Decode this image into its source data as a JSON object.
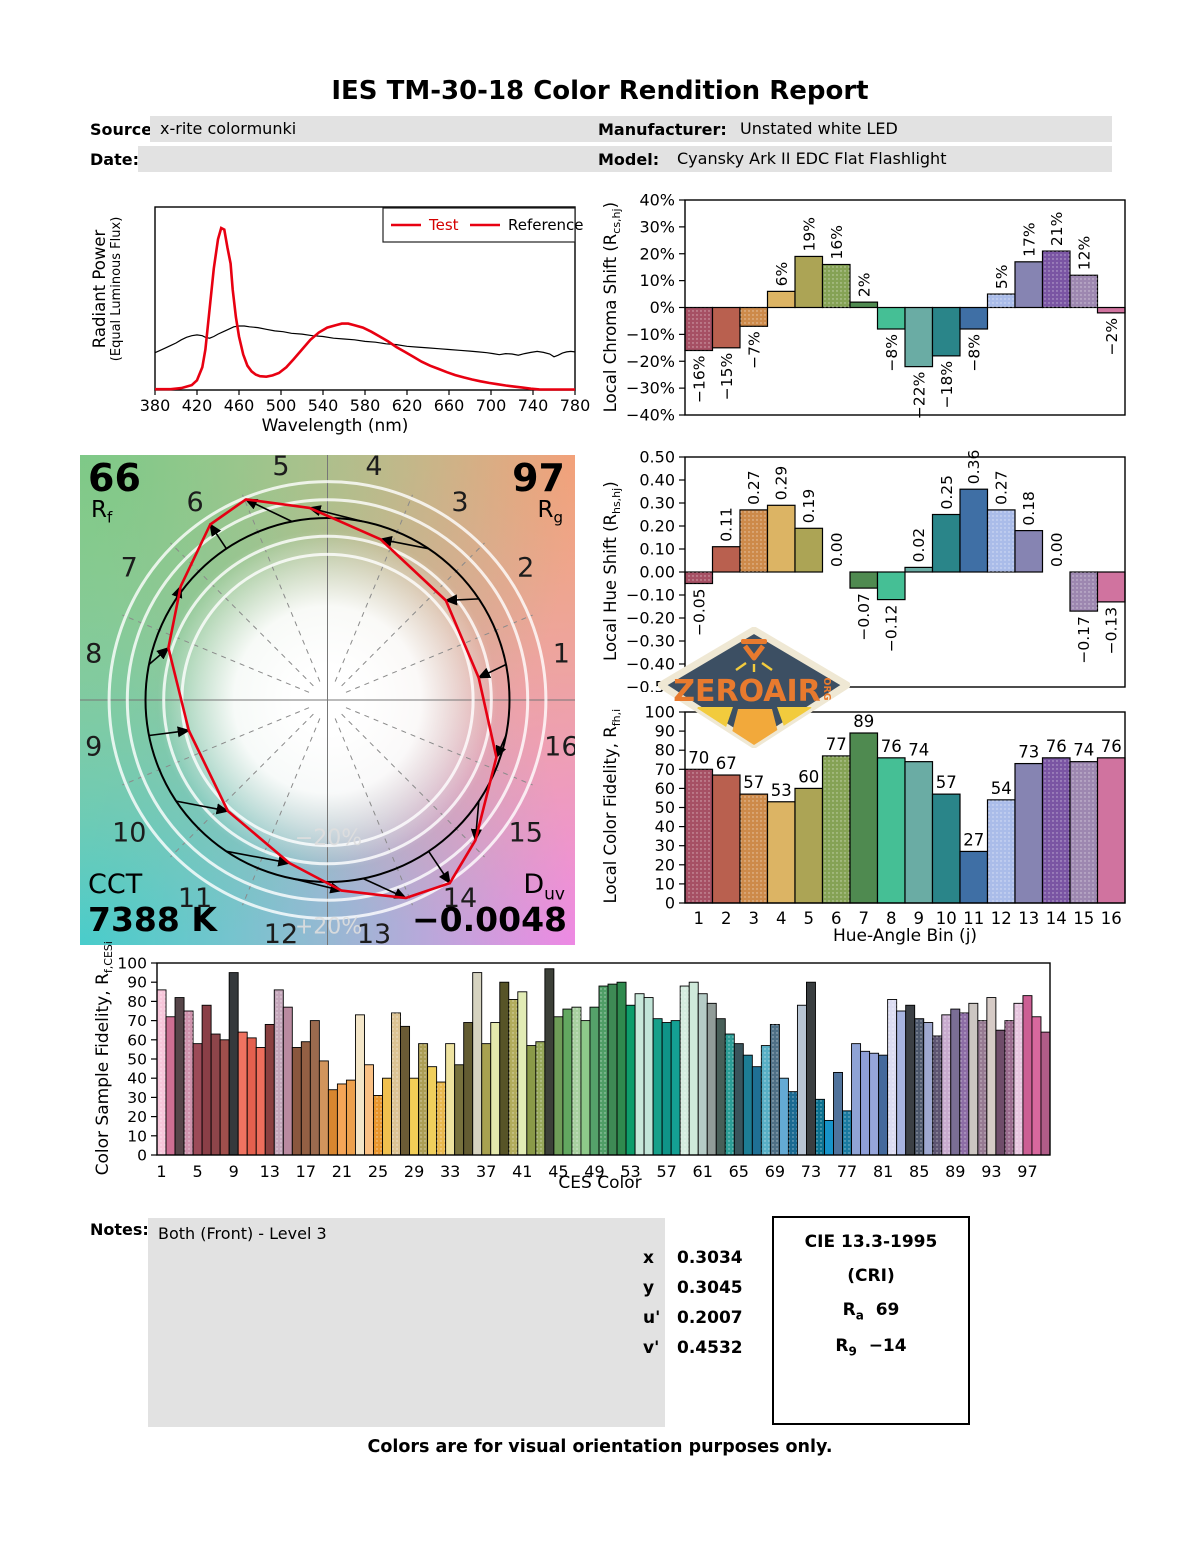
{
  "title": "IES TM-30-18 Color Rendition Report",
  "fields": {
    "source_label": "Source:",
    "source_value": "x-rite colormunki",
    "date_label": "Date:",
    "date_value": "",
    "manufacturer_label": "Manufacturer:",
    "manufacturer_value": "Unstated white LED",
    "model_label": "Model:",
    "model_value": "Cyansky Ark II EDC Flat Flashlight"
  },
  "labels": {
    "spd_ylabel_1": "Radiant Power",
    "spd_ylabel_2": "(Equal Luminous Flux)",
    "spd_xlabel": "Wavelength (nm)",
    "chroma_main": "Local Chroma Shift (R",
    "chroma_sub": "cs,hj",
    "chroma_close": ")",
    "hue_main": "Local Hue Shift (R",
    "hue_sub": "hs,hj",
    "hue_close": ")",
    "fid_main": "Local Color Fidelity, R",
    "fid_sub": "fh,i",
    "fid_close": "",
    "fid_xlabel": "Hue-Angle Bin (j)",
    "ces_main": "Color Sample Fidelity, R",
    "ces_sub": "f,CESi",
    "ces_close": "",
    "ces_xlabel": "CES Color"
  },
  "cvg": {
    "rf": "66",
    "rf_main": "R",
    "rf_sub": "f",
    "rg": "97",
    "rg_main": "R",
    "rg_sub": "g",
    "cct_label": "CCT",
    "cct_value": "7388 K",
    "duv_main": "D",
    "duv_sub": "uv",
    "duv_value": "−0.0048",
    "ring_plus": "+20%",
    "ring_minus": "−20%"
  },
  "logo": {
    "text": "ZEROAIR",
    "org": "ORG"
  },
  "notes": {
    "label": "Notes:",
    "text": "Both (Front) - Level 3"
  },
  "coords": [
    {
      "k": "x",
      "v": "0.3034"
    },
    {
      "k": "y",
      "v": "0.3045"
    },
    {
      "k": "u'",
      "v": "0.2007"
    },
    {
      "k": "v'",
      "v": "0.4532"
    }
  ],
  "cri": {
    "title": "CIE 13.3-1995",
    "subtitle": "(CRI)",
    "ra_main": "R",
    "ra_sub": "a",
    "ra_value": "69",
    "r9_main": "R",
    "r9_sub": "9",
    "r9_value": "−14"
  },
  "footer": "Colors are for visual orientation purposes only.",
  "bin_colors": [
    "#a65064",
    "#b9604f",
    "#cd8a4a",
    "#dcb464",
    "#aca455",
    "#85a255",
    "#4f8a50",
    "#45bf95",
    "#6aaca4",
    "#2a8589",
    "#3f6fa5",
    "#aabce9",
    "#8684b2",
    "#7a55a3",
    "#9d87b0",
    "#d0739f"
  ],
  "dotted_bins": [
    1,
    3,
    6,
    12,
    14,
    15
  ],
  "chart_data": {
    "spd": {
      "type": "line",
      "xlabel": "Wavelength (nm)",
      "ylabel": "Radiant Power (Equal Luminous Flux)",
      "xlim": [
        380,
        780
      ],
      "xtick_step": 40,
      "grid": false,
      "legend": [
        "Test",
        "Reference"
      ],
      "legend_colors": [
        "#d40000",
        "#000000"
      ],
      "test": [
        [
          380,
          0.005
        ],
        [
          395,
          0.005
        ],
        [
          405,
          0.012
        ],
        [
          415,
          0.03
        ],
        [
          420,
          0.06
        ],
        [
          425,
          0.14
        ],
        [
          428,
          0.25
        ],
        [
          432,
          0.5
        ],
        [
          436,
          0.75
        ],
        [
          440,
          0.93
        ],
        [
          443,
          1.0
        ],
        [
          446,
          0.99
        ],
        [
          449,
          0.88
        ],
        [
          452,
          0.78
        ],
        [
          454,
          0.62
        ],
        [
          457,
          0.45
        ],
        [
          460,
          0.33
        ],
        [
          464,
          0.22
        ],
        [
          468,
          0.15
        ],
        [
          472,
          0.115
        ],
        [
          476,
          0.095
        ],
        [
          480,
          0.085
        ],
        [
          486,
          0.082
        ],
        [
          492,
          0.09
        ],
        [
          498,
          0.105
        ],
        [
          505,
          0.14
        ],
        [
          512,
          0.19
        ],
        [
          520,
          0.25
        ],
        [
          528,
          0.31
        ],
        [
          536,
          0.355
        ],
        [
          544,
          0.385
        ],
        [
          552,
          0.4
        ],
        [
          558,
          0.41
        ],
        [
          564,
          0.41
        ],
        [
          570,
          0.4
        ],
        [
          578,
          0.385
        ],
        [
          586,
          0.36
        ],
        [
          594,
          0.33
        ],
        [
          602,
          0.3
        ],
        [
          610,
          0.265
        ],
        [
          618,
          0.235
        ],
        [
          626,
          0.205
        ],
        [
          634,
          0.175
        ],
        [
          642,
          0.15
        ],
        [
          650,
          0.13
        ],
        [
          658,
          0.11
        ],
        [
          666,
          0.092
        ],
        [
          674,
          0.078
        ],
        [
          682,
          0.065
        ],
        [
          690,
          0.054
        ],
        [
          698,
          0.044
        ],
        [
          706,
          0.036
        ],
        [
          714,
          0.028
        ],
        [
          722,
          0.021
        ],
        [
          730,
          0.015
        ],
        [
          738,
          0.008
        ],
        [
          746,
          0.004
        ],
        [
          760,
          0.003
        ],
        [
          780,
          0.003
        ]
      ],
      "reference": [
        [
          380,
          0.23
        ],
        [
          385,
          0.245
        ],
        [
          390,
          0.26
        ],
        [
          395,
          0.275
        ],
        [
          400,
          0.29
        ],
        [
          405,
          0.31
        ],
        [
          410,
          0.325
        ],
        [
          415,
          0.335
        ],
        [
          420,
          0.34
        ],
        [
          425,
          0.335
        ],
        [
          428,
          0.325
        ],
        [
          432,
          0.32
        ],
        [
          436,
          0.33
        ],
        [
          440,
          0.345
        ],
        [
          445,
          0.36
        ],
        [
          450,
          0.375
        ],
        [
          455,
          0.39
        ],
        [
          460,
          0.395
        ],
        [
          465,
          0.395
        ],
        [
          470,
          0.39
        ],
        [
          478,
          0.385
        ],
        [
          486,
          0.375
        ],
        [
          494,
          0.365
        ],
        [
          502,
          0.36
        ],
        [
          510,
          0.35
        ],
        [
          520,
          0.345
        ],
        [
          530,
          0.335
        ],
        [
          540,
          0.33
        ],
        [
          550,
          0.32
        ],
        [
          560,
          0.315
        ],
        [
          570,
          0.31
        ],
        [
          580,
          0.3
        ],
        [
          590,
          0.295
        ],
        [
          600,
          0.285
        ],
        [
          610,
          0.28
        ],
        [
          620,
          0.27
        ],
        [
          630,
          0.265
        ],
        [
          640,
          0.26
        ],
        [
          650,
          0.255
        ],
        [
          660,
          0.25
        ],
        [
          670,
          0.245
        ],
        [
          680,
          0.24
        ],
        [
          688,
          0.235
        ],
        [
          696,
          0.23
        ],
        [
          702,
          0.225
        ],
        [
          708,
          0.218
        ],
        [
          714,
          0.225
        ],
        [
          720,
          0.222
        ],
        [
          726,
          0.215
        ],
        [
          732,
          0.225
        ],
        [
          738,
          0.232
        ],
        [
          744,
          0.238
        ],
        [
          750,
          0.232
        ],
        [
          756,
          0.222
        ],
        [
          760,
          0.205
        ],
        [
          764,
          0.215
        ],
        [
          768,
          0.228
        ],
        [
          772,
          0.235
        ],
        [
          776,
          0.238
        ],
        [
          780,
          0.235
        ]
      ]
    },
    "local_chroma_shift": {
      "type": "bar",
      "ylabel": "Local Chroma Shift (Rcs,hj)",
      "categories": [
        1,
        2,
        3,
        4,
        5,
        6,
        7,
        8,
        9,
        10,
        11,
        12,
        13,
        14,
        15,
        16
      ],
      "values": [
        -16,
        -15,
        -7,
        6,
        19,
        16,
        2,
        -8,
        -22,
        -18,
        -8,
        5,
        17,
        21,
        12,
        -2
      ],
      "unit": "%",
      "ylim": [
        -40,
        40
      ],
      "ytick_step": 10
    },
    "local_hue_shift": {
      "type": "bar",
      "ylabel": "Local Hue Shift (Rhs,hj)",
      "categories": [
        1,
        2,
        3,
        4,
        5,
        6,
        7,
        8,
        9,
        10,
        11,
        12,
        13,
        14,
        15,
        16
      ],
      "values": [
        -0.05,
        0.11,
        0.27,
        0.29,
        0.19,
        0.0,
        -0.07,
        -0.12,
        0.02,
        0.25,
        0.36,
        0.27,
        0.18,
        0.0,
        -0.17,
        -0.13
      ],
      "ylim": [
        -0.5,
        0.5
      ],
      "ytick_step": 0.1
    },
    "local_color_fidelity": {
      "type": "bar",
      "ylabel": "Local Color Fidelity, Rfh,i",
      "xlabel": "Hue-Angle Bin (j)",
      "categories": [
        1,
        2,
        3,
        4,
        5,
        6,
        7,
        8,
        9,
        10,
        11,
        12,
        13,
        14,
        15,
        16
      ],
      "values": [
        70,
        67,
        57,
        53,
        60,
        77,
        89,
        76,
        74,
        57,
        27,
        54,
        73,
        76,
        74,
        76
      ],
      "ylim": [
        0,
        100
      ],
      "ytick_step": 10
    },
    "ces_fidelity": {
      "type": "bar",
      "ylabel": "Color Sample Fidelity, Rf,CESi",
      "xlabel": "CES Color",
      "ylim": [
        0,
        100
      ],
      "ytick_step": 10,
      "xtick_first": 1,
      "xtick_step": 4,
      "values": [
        86,
        72,
        82,
        75,
        58,
        78,
        63,
        60,
        95,
        64,
        61,
        56,
        68,
        86,
        77,
        56,
        59,
        70,
        49,
        34,
        37,
        39,
        73,
        47,
        31,
        40,
        74,
        67,
        40,
        58,
        46,
        38,
        58,
        47,
        69,
        95,
        58,
        69,
        90,
        81,
        85,
        57,
        59,
        97,
        72,
        76,
        77,
        70,
        77,
        88,
        89,
        90,
        78,
        84,
        82,
        71,
        69,
        70,
        88,
        90,
        84,
        79,
        71,
        63,
        58,
        52,
        46,
        57,
        68,
        40,
        33,
        78,
        90,
        29,
        18,
        43,
        23,
        58,
        54,
        53,
        52,
        81,
        75,
        78,
        71,
        69,
        62,
        73,
        76,
        74,
        79,
        70,
        82,
        65,
        70,
        79,
        83,
        72,
        64
      ],
      "colors": [
        "#f7c6da",
        "#ce6f93",
        "#564549",
        "#cf93ad",
        "#9c4a58",
        "#8a3f47",
        "#8e454a",
        "#a04f4c",
        "#35393c",
        "#ef7361",
        "#e4604e",
        "#ed6e5c",
        "#8a4040",
        "#c4a6ba",
        "#ba8aa0",
        "#8a573e",
        "#936044",
        "#9b6a4e",
        "#d2955c",
        "#d8862f",
        "#f5a557",
        "#eda04c",
        "#f4e6c8",
        "#fac084",
        "#e8952d",
        "#f0c04f",
        "#dcc394",
        "#6b5b35",
        "#f2ce57",
        "#ac9e55",
        "#f0cf5c",
        "#e9b84d",
        "#eee3a0",
        "#77713d",
        "#635c32",
        "#d6d3c0",
        "#a8a150",
        "#e4e8ad",
        "#575427",
        "#b2ac5c",
        "#e2ecb5",
        "#8a9a48",
        "#97a85a",
        "#3c4038",
        "#6f9d58",
        "#62a860",
        "#a8d0a0",
        "#8ec98a",
        "#55a26a",
        "#4f9e66",
        "#3e8a55",
        "#2f8a4e",
        "#0d9d6b",
        "#c8e8da",
        "#c2e5d8",
        "#17a08a",
        "#0f9488",
        "#14a094",
        "#d5ecdf",
        "#cfeada",
        "#b5ccc6",
        "#919c98",
        "#485f58",
        "#2c9d96",
        "#39555c",
        "#1d7d94",
        "#1f7095",
        "#58afc5",
        "#4f7086",
        "#64aad4",
        "#1a6a92",
        "#b8c5d4",
        "#3a3e40",
        "#0c7290",
        "#1793c9",
        "#50739c",
        "#1a7aa0",
        "#8fa3d5",
        "#8e9fd8",
        "#96a5da",
        "#44699c",
        "#dcdcf2",
        "#a8b4e0",
        "#3c4045",
        "#4d586c",
        "#9ea8d0",
        "#5e5572",
        "#c8abce",
        "#7a6e95",
        "#8d6da5",
        "#ccc6c2",
        "#967a92",
        "#d6cbc6",
        "#704d6a",
        "#9a6c8e",
        "#e6c5de",
        "#cc5f94",
        "#d8689e",
        "#b05c88"
      ],
      "dotted": [
        1,
        4,
        14,
        25,
        27,
        30,
        32,
        40,
        43,
        47,
        50,
        59,
        64,
        68,
        69,
        71,
        74,
        77,
        82,
        85,
        87,
        88,
        90,
        92,
        95,
        96
      ]
    },
    "color_vector_graphic": {
      "type": "polar-vector",
      "rf": 66,
      "rg": 97,
      "cct_k": 7388,
      "duv": -0.0048,
      "bins": [
        1,
        2,
        3,
        4,
        5,
        6,
        7,
        8,
        9,
        10,
        11,
        12,
        13,
        14,
        15,
        16
      ],
      "rcs_pct": [
        -16,
        -15,
        -7,
        6,
        19,
        16,
        2,
        -8,
        -22,
        -18,
        -8,
        5,
        17,
        21,
        12,
        -2
      ],
      "rhs": [
        -0.05,
        0.11,
        0.27,
        0.29,
        0.19,
        0.0,
        -0.07,
        -0.12,
        0.02,
        0.25,
        0.36,
        0.27,
        0.18,
        0.0,
        -0.17,
        -0.13
      ],
      "ring_labels": [
        "+20%",
        "−20%"
      ]
    }
  }
}
